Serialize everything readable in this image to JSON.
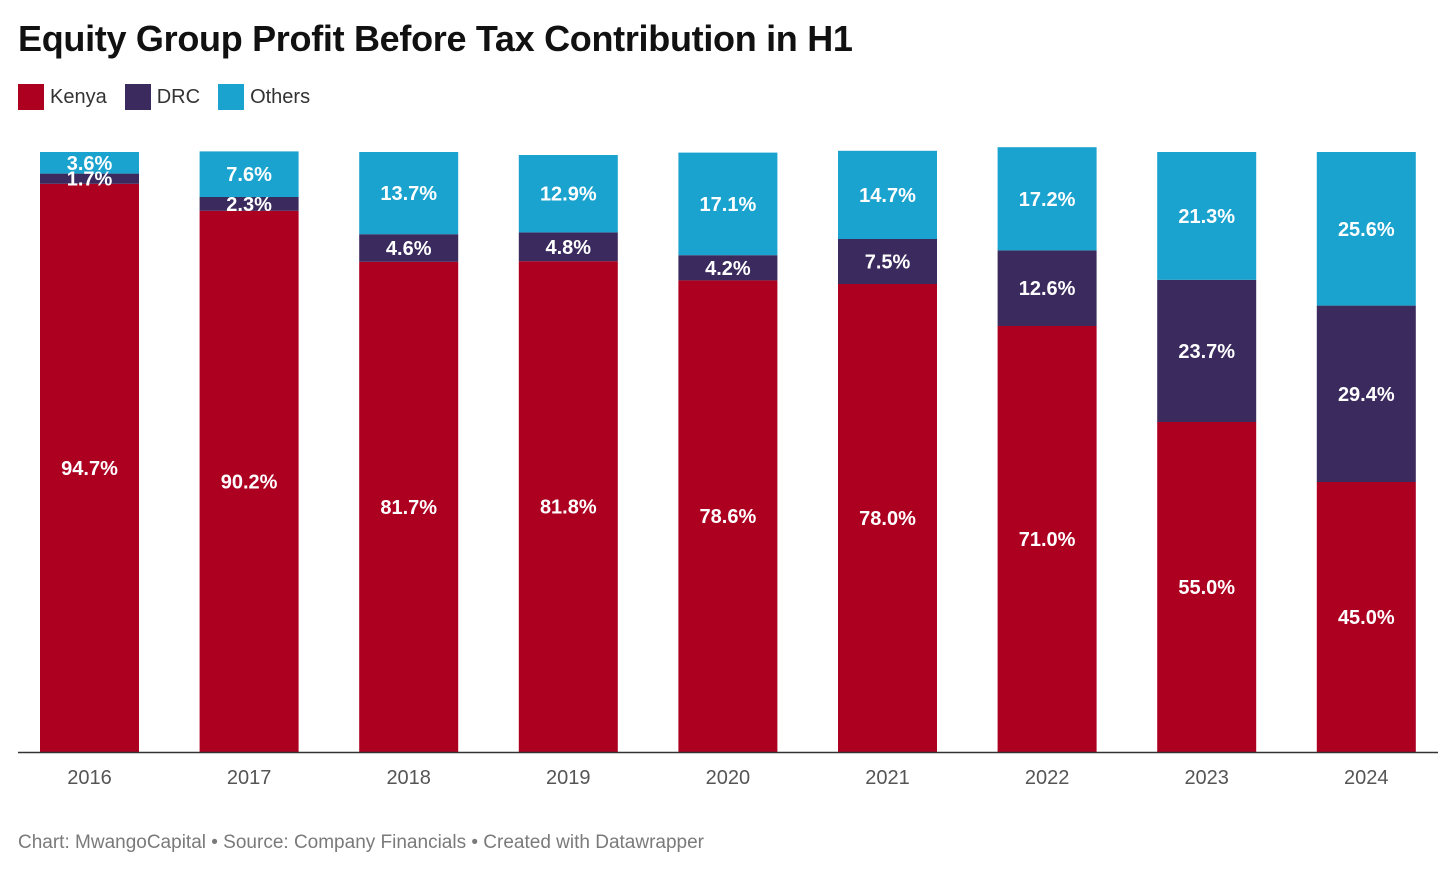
{
  "header": {
    "title": "Equity Group Profit Before Tax Contribution in H1"
  },
  "legend": [
    {
      "label": "Kenya",
      "color": "#ad0021"
    },
    {
      "label": "DRC",
      "color": "#3b2a5e"
    },
    {
      "label": "Others",
      "color": "#1ba3cf"
    }
  ],
  "chart_data": {
    "type": "bar",
    "stacked": true,
    "categories": [
      "2016",
      "2017",
      "2018",
      "2019",
      "2020",
      "2021",
      "2022",
      "2023",
      "2024"
    ],
    "series": [
      {
        "name": "Kenya",
        "color": "#ad0021",
        "values": [
          94.7,
          90.2,
          81.7,
          81.8,
          78.6,
          78.0,
          71.0,
          55.0,
          45.0
        ],
        "labels": [
          "94.7%",
          "90.2%",
          "81.7%",
          "81.8%",
          "78.6%",
          "78.0%",
          "71.0%",
          "55.0%",
          "45.0%"
        ]
      },
      {
        "name": "DRC",
        "color": "#3b2a5e",
        "values": [
          1.7,
          2.3,
          4.6,
          4.8,
          4.2,
          7.5,
          12.6,
          23.7,
          29.4
        ],
        "labels": [
          "1.7%",
          "2.3%",
          "4.6%",
          "4.8%",
          "4.2%",
          "7.5%",
          "12.6%",
          "23.7%",
          "29.4%"
        ]
      },
      {
        "name": "Others",
        "color": "#1ba3cf",
        "values": [
          3.6,
          7.6,
          13.7,
          12.9,
          17.1,
          14.7,
          17.2,
          21.3,
          25.6
        ],
        "labels": [
          "3.6%",
          "7.6%",
          "13.7%",
          "12.9%",
          "17.1%",
          "14.7%",
          "17.2%",
          "21.3%",
          "25.6%"
        ]
      }
    ],
    "ylim": [
      0,
      100
    ],
    "grid": false,
    "legend_position": "top-left"
  },
  "footer": {
    "text": "Chart: MwangoCapital • Source: Company Financials • Created with Datawrapper"
  }
}
